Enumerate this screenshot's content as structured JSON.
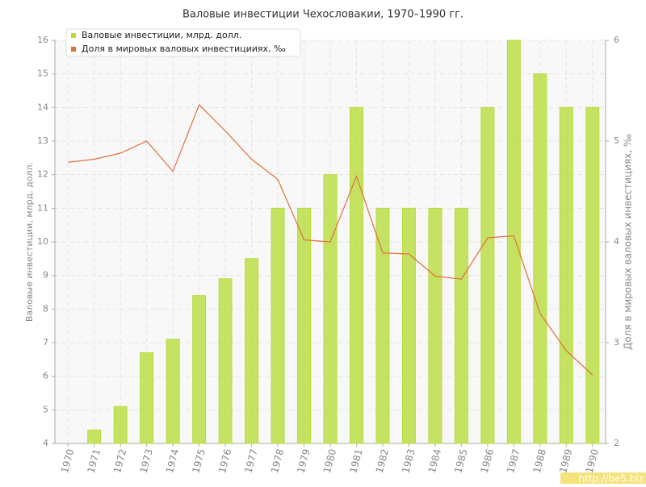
{
  "chart_data": {
    "type": "bar-line",
    "title": "Валовые инвестиции Чехословакии, 1970–1990 гг.",
    "y_label": "Валовые инвестиции, млрд. долл.",
    "y2_label": "Доля в мировых валовых инвестициях, ‰",
    "categories": [
      "1970",
      "1971",
      "1972",
      "1973",
      "1974",
      "1975",
      "1976",
      "1977",
      "1978",
      "1979",
      "1980",
      "1981",
      "1982",
      "1983",
      "1984",
      "1985",
      "1986",
      "1987",
      "1988",
      "1989",
      "1990"
    ],
    "series": [
      {
        "name": "Валовые инвестиции, млрд. долл.",
        "type": "bar",
        "color": "#b8dc3c",
        "values": [
          null,
          4.4,
          5.1,
          6.7,
          7.1,
          8.4,
          8.9,
          9.5,
          11,
          11,
          12,
          14,
          11,
          11,
          11,
          11,
          14,
          16,
          15,
          14,
          14
        ]
      },
      {
        "name": "Доля в мировых валовых инвестицииях, ‰",
        "type": "line",
        "axis": "y2",
        "color": "#e0703c",
        "values": [
          4.79,
          4.82,
          4.88,
          5.0,
          4.7,
          5.36,
          5.1,
          4.82,
          4.62,
          4.02,
          4.0,
          4.65,
          3.89,
          3.88,
          3.66,
          3.63,
          4.04,
          4.06,
          3.29,
          2.92,
          2.68
        ]
      }
    ],
    "ylim": [
      4,
      16
    ],
    "yticks": [
      4,
      5,
      6,
      7,
      8,
      9,
      10,
      11,
      12,
      13,
      14,
      15,
      16
    ],
    "y2lim": [
      2,
      6
    ],
    "y2ticks": [
      2,
      3,
      4,
      5,
      6
    ],
    "grid": true,
    "legend": "top-left",
    "watermark": "http://be5.biz"
  }
}
